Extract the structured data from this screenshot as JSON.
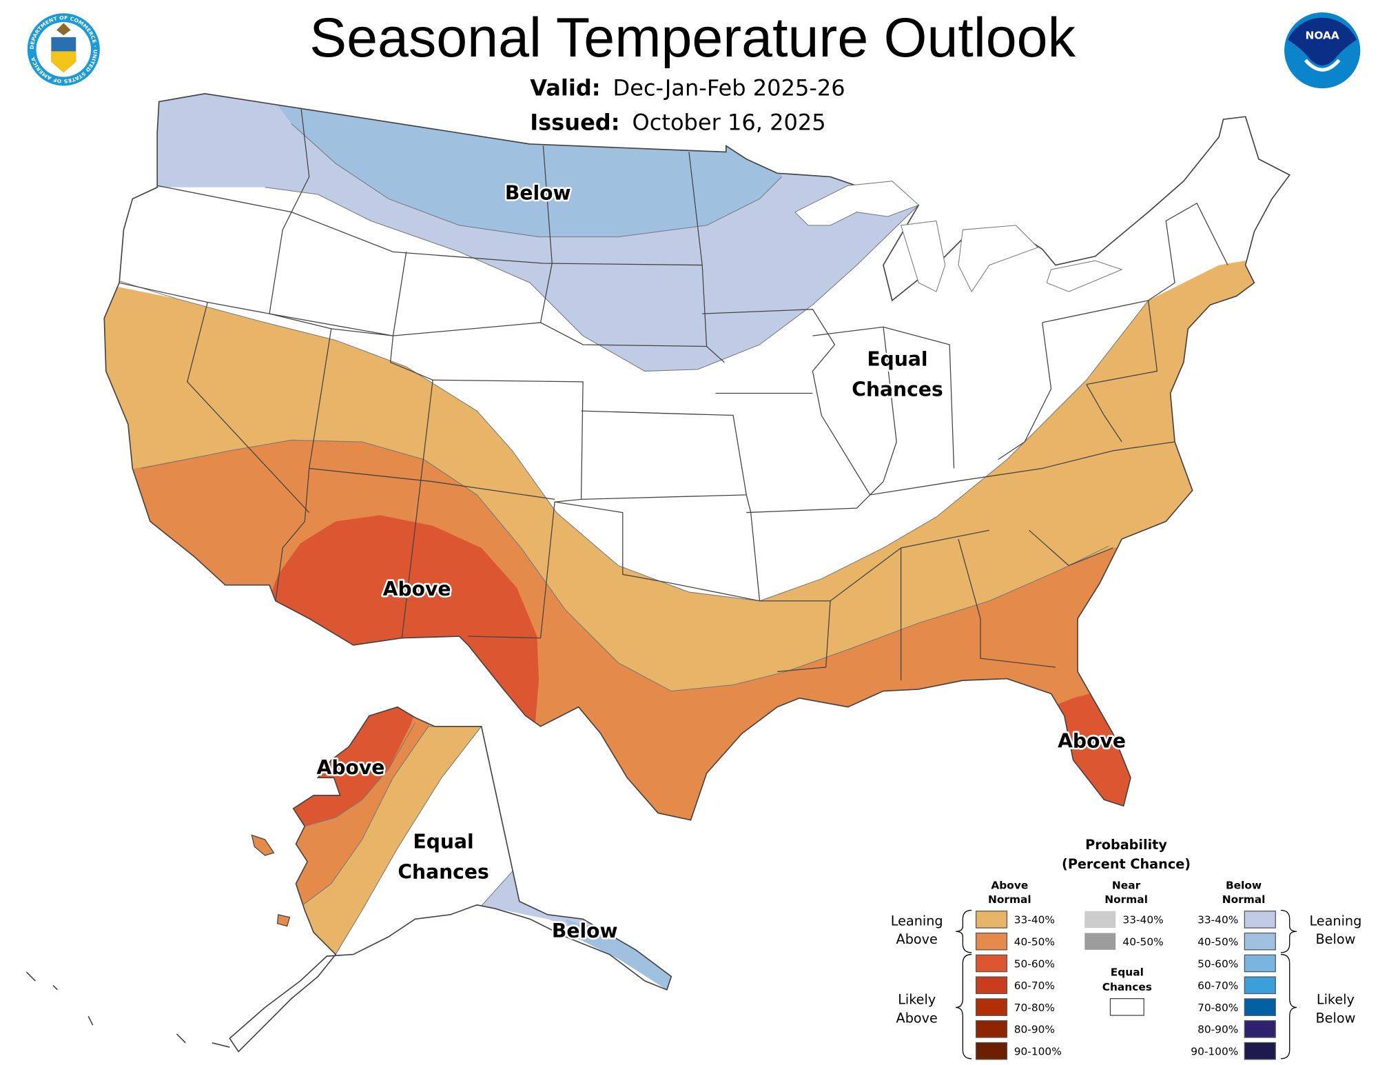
{
  "header": {
    "title": "Seasonal Temperature Outlook",
    "valid_label": "Valid:",
    "valid_value": "Dec-Jan-Feb 2025-26",
    "issued_label": "Issued:",
    "issued_value": "October 16, 2025",
    "left_logo": "department-of-commerce-seal",
    "right_logo": "noaa-logo",
    "left_logo_text": "DEPARTMENT OF COMMERCE · UNITED STATES OF AMERICA",
    "right_logo_text": "NOAA"
  },
  "map": {
    "labels": {
      "conus_below": "Below",
      "conus_equal_1": "Equal",
      "conus_equal_2": "Chances",
      "conus_above_sw": "Above",
      "conus_above_fl": "Above",
      "ak_above": "Above",
      "ak_equal_1": "Equal",
      "ak_equal_2": "Chances",
      "ak_below": "Below"
    },
    "colors": {
      "above_33_40": "#e8b468",
      "above_40_50": "#e48a4a",
      "above_50_60": "#dc5631",
      "below_33_40": "#c0cbe5",
      "below_40_50": "#a0c0df",
      "equal_chances": "#ffffff",
      "border": "#444444"
    }
  },
  "legend": {
    "title": "Probability",
    "subtitle": "(Percent Chance)",
    "above_header_1": "Above",
    "above_header_2": "Normal",
    "near_header_1": "Near",
    "near_header_2": "Normal",
    "below_header_1": "Below",
    "below_header_2": "Normal",
    "equal_1": "Equal",
    "equal_2": "Chances",
    "leaning_above_1": "Leaning",
    "leaning_above_2": "Above",
    "likely_above_1": "Likely",
    "likely_above_2": "Above",
    "leaning_below_1": "Leaning",
    "leaning_below_2": "Below",
    "likely_below_1": "Likely",
    "likely_below_2": "Below",
    "above": [
      {
        "range": "33-40%",
        "color": "#e8b468"
      },
      {
        "range": "40-50%",
        "color": "#e48a4a"
      },
      {
        "range": "50-60%",
        "color": "#dc5631"
      },
      {
        "range": "60-70%",
        "color": "#c93c1e"
      },
      {
        "range": "70-80%",
        "color": "#b22e05"
      },
      {
        "range": "80-90%",
        "color": "#8e2400"
      },
      {
        "range": "90-100%",
        "color": "#6b1e00"
      }
    ],
    "near": [
      {
        "range": "33-40%",
        "color": "#cccccc"
      },
      {
        "range": "40-50%",
        "color": "#9c9c9c"
      }
    ],
    "below": [
      {
        "range": "33-40%",
        "color": "#c0cbe5"
      },
      {
        "range": "40-50%",
        "color": "#a0c0df"
      },
      {
        "range": "50-60%",
        "color": "#7ab5e2"
      },
      {
        "range": "60-70%",
        "color": "#3b9fdc"
      },
      {
        "range": "70-80%",
        "color": "#015fa3"
      },
      {
        "range": "80-90%",
        "color": "#2d2170"
      },
      {
        "range": "90-100%",
        "color": "#1f1a4e"
      }
    ]
  }
}
